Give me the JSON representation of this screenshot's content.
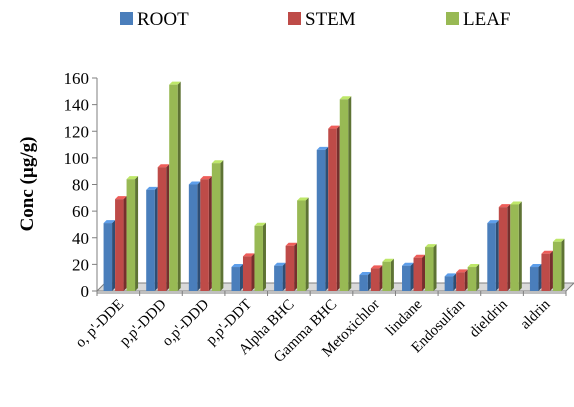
{
  "chart_data": {
    "type": "bar",
    "title": "",
    "xlabel": "",
    "ylabel": "Conc (µg/g)",
    "ylim": [
      0,
      160
    ],
    "yticks": [
      0,
      20,
      40,
      60,
      80,
      100,
      120,
      140,
      160
    ],
    "grid": false,
    "legend_position": "top",
    "categories": [
      "o, p'-DDE",
      "p,p'-DDD",
      "o,p'-DDD",
      "p,p'-DDT",
      "Alpha BHC",
      "Gamma BHC",
      "Metoxichlor",
      "lindane",
      "Endosulfan",
      "dieldrin",
      "aldrin"
    ],
    "series": [
      {
        "name": "ROOT",
        "color": "#4A7EBB",
        "values": [
          51,
          76,
          80,
          18,
          19,
          106,
          12,
          19,
          11,
          51,
          18
        ]
      },
      {
        "name": "STEM",
        "color": "#BE4B48",
        "values": [
          69,
          93,
          84,
          26,
          34,
          122,
          17,
          25,
          14,
          63,
          28
        ]
      },
      {
        "name": "LEAF",
        "color": "#98B954",
        "values": [
          84,
          155,
          96,
          49,
          68,
          144,
          22,
          33,
          18,
          65,
          37
        ]
      }
    ]
  }
}
